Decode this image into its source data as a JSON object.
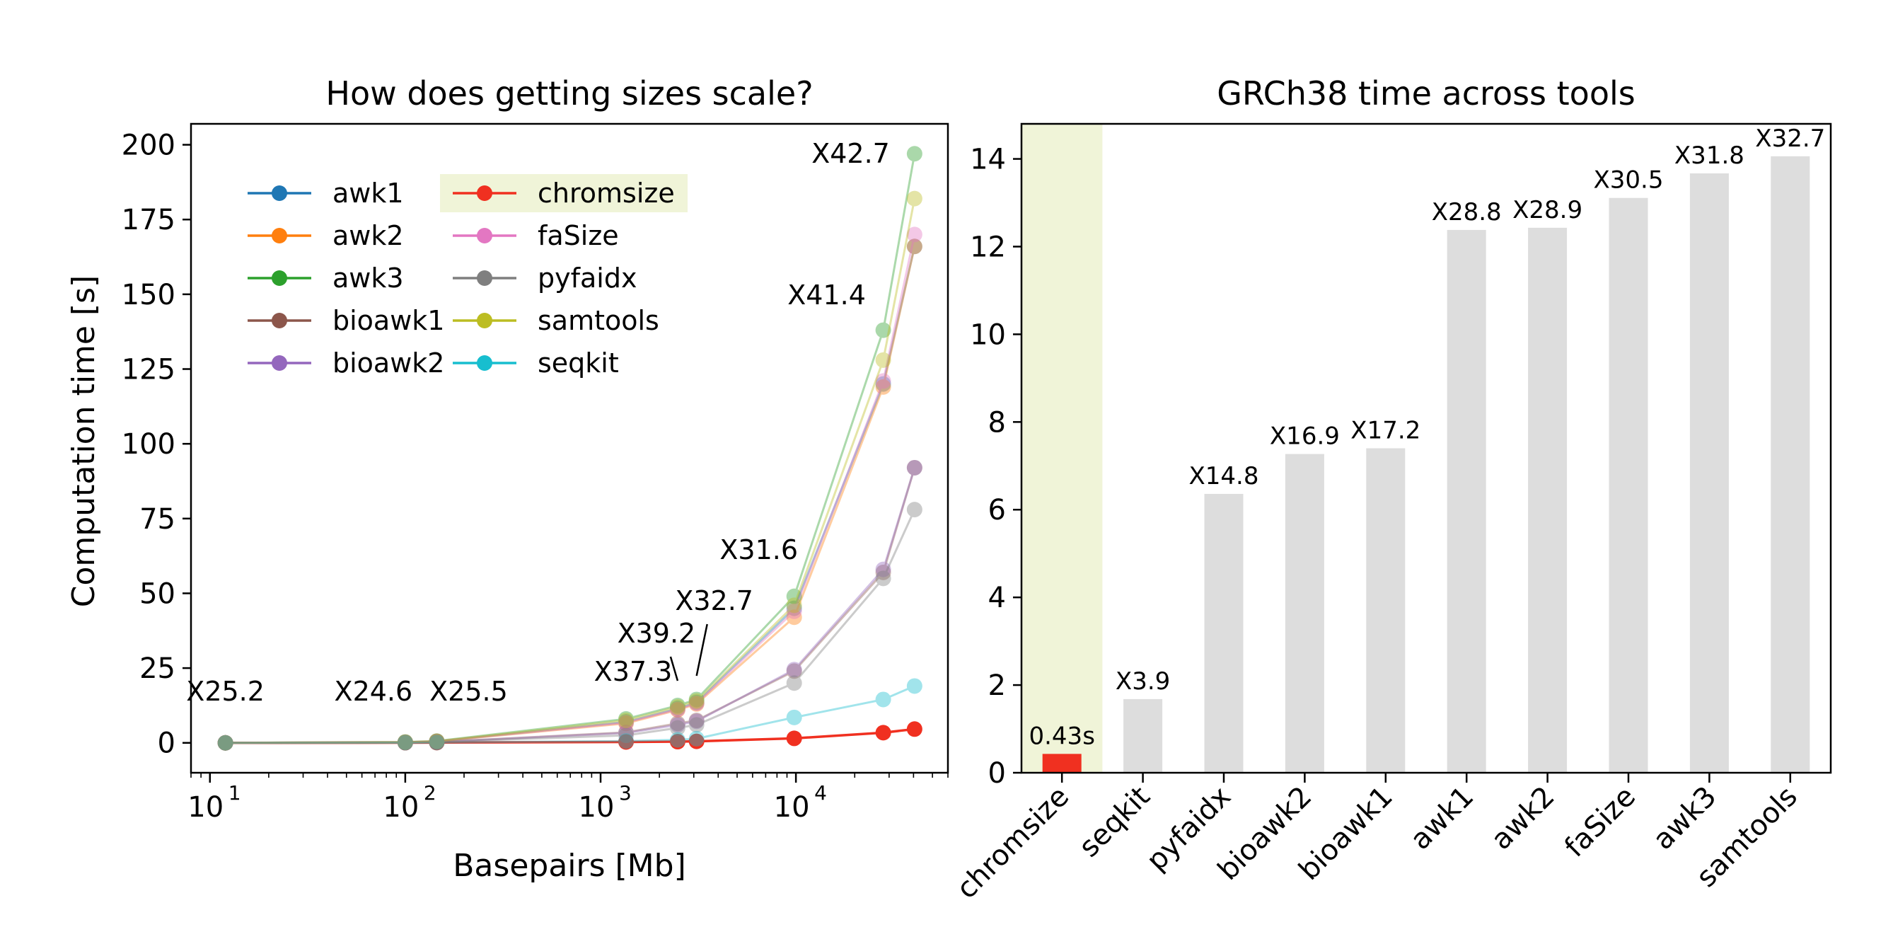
{
  "chart_data": [
    {
      "type": "line",
      "title": "How does getting sizes scale?",
      "xlabel": "Basepairs [Mb]",
      "ylabel": "Computation time [s]",
      "xscale": "log",
      "xlim": [
        8,
        60000
      ],
      "ylim": [
        -10,
        207
      ],
      "yticks": [
        0,
        25,
        50,
        75,
        100,
        125,
        150,
        175,
        200
      ],
      "xticks": [
        10,
        100,
        1000,
        10000
      ],
      "xtick_base": "10",
      "xtick_exponents": [
        "1",
        "2",
        "3",
        "4"
      ],
      "grid": false,
      "legend_placement": "upper-left",
      "highlight_series": "chromsize",
      "highlight_color": "#f0f4d8",
      "x": [
        12,
        100,
        145,
        1350,
        2480,
        3100,
        9800,
        28000,
        40500
      ],
      "series": [
        {
          "name": "awk1",
          "color": "#1f77b4",
          "values": [
            0.0,
            0.2,
            0.5,
            7.0,
            11.5,
            13.5,
            45.0,
            120.0,
            166.0
          ]
        },
        {
          "name": "awk2",
          "color": "#ff7f0e",
          "values": [
            0.0,
            0.2,
            0.5,
            6.5,
            11.0,
            13.0,
            42.0,
            119.0,
            166.0
          ]
        },
        {
          "name": "awk3",
          "color": "#2ca02c",
          "values": [
            0.0,
            0.3,
            0.6,
            8.0,
            12.5,
            14.5,
            49.0,
            138.0,
            197.0
          ]
        },
        {
          "name": "bioawk1",
          "color": "#8c564b",
          "values": [
            0.0,
            0.1,
            0.3,
            3.5,
            6.5,
            7.5,
            24.0,
            57.0,
            92.0
          ]
        },
        {
          "name": "bioawk2",
          "color": "#9467bd",
          "values": [
            0.0,
            0.1,
            0.3,
            3.3,
            6.0,
            7.2,
            24.5,
            58.0,
            92.0
          ]
        },
        {
          "name": "chromsize",
          "color": "#f03020",
          "values": [
            0.0,
            0.05,
            0.1,
            0.3,
            0.4,
            0.5,
            1.5,
            3.4,
            4.6
          ]
        },
        {
          "name": "faSize",
          "color": "#e377c2",
          "values": [
            0.0,
            0.2,
            0.5,
            6.8,
            11.2,
            13.2,
            44.0,
            121.0,
            170.0
          ]
        },
        {
          "name": "pyfaidx",
          "color": "#7f7f7f",
          "values": [
            0.0,
            0.1,
            0.3,
            2.5,
            5.0,
            6.0,
            20.0,
            55.0,
            78.0
          ]
        },
        {
          "name": "samtools",
          "color": "#bcbd22",
          "values": [
            0.0,
            0.2,
            0.5,
            7.5,
            12.0,
            14.0,
            46.0,
            128.0,
            182.0
          ]
        },
        {
          "name": "seqkit",
          "color": "#17becf",
          "values": [
            0.0,
            0.05,
            0.1,
            0.6,
            1.0,
            1.4,
            8.5,
            14.5,
            19.0
          ]
        }
      ],
      "annotations": [
        {
          "text": "X25.2",
          "x": 12,
          "y": 0
        },
        {
          "text": "X24.6",
          "x": 100,
          "y": 0
        },
        {
          "text": "X25.5",
          "x": 145,
          "y": 0
        },
        {
          "text": "X37.3",
          "x": 1350,
          "y": 7.0
        },
        {
          "text": "X39.2",
          "x": 2480,
          "y": 11.5
        },
        {
          "text": "X32.7",
          "x": 3100,
          "y": 13.5
        },
        {
          "text": "X31.6",
          "x": 9800,
          "y": 45.0
        },
        {
          "text": "X41.4",
          "x": 28000,
          "y": 138.0
        },
        {
          "text": "X42.7",
          "x": 40500,
          "y": 197.0
        }
      ]
    },
    {
      "type": "bar",
      "title": "GRCh38 time across tools",
      "xlabel": "",
      "ylabel": "",
      "ylim": [
        0,
        14.8
      ],
      "yticks": [
        0,
        2,
        4,
        6,
        8,
        10,
        12,
        14
      ],
      "grid": false,
      "highlight_category": "chromsize",
      "highlight_color": "#f0f4d8",
      "categories": [
        "chromsize",
        "seqkit",
        "pyfaidx",
        "bioawk2",
        "bioawk1",
        "awk1",
        "awk2",
        "faSize",
        "awk3",
        "samtools"
      ],
      "values": [
        0.43,
        1.68,
        6.36,
        7.27,
        7.4,
        12.38,
        12.43,
        13.11,
        13.67,
        14.06
      ],
      "bar_labels": [
        "0.43s",
        "X3.9",
        "X14.8",
        "X16.9",
        "X17.2",
        "X28.8",
        "X28.9",
        "X30.5",
        "X31.8",
        "X32.7"
      ],
      "colors": [
        "#f03020",
        "#dddddd",
        "#dddddd",
        "#dddddd",
        "#dddddd",
        "#dddddd",
        "#dddddd",
        "#dddddd",
        "#dddddd",
        "#dddddd"
      ]
    }
  ]
}
